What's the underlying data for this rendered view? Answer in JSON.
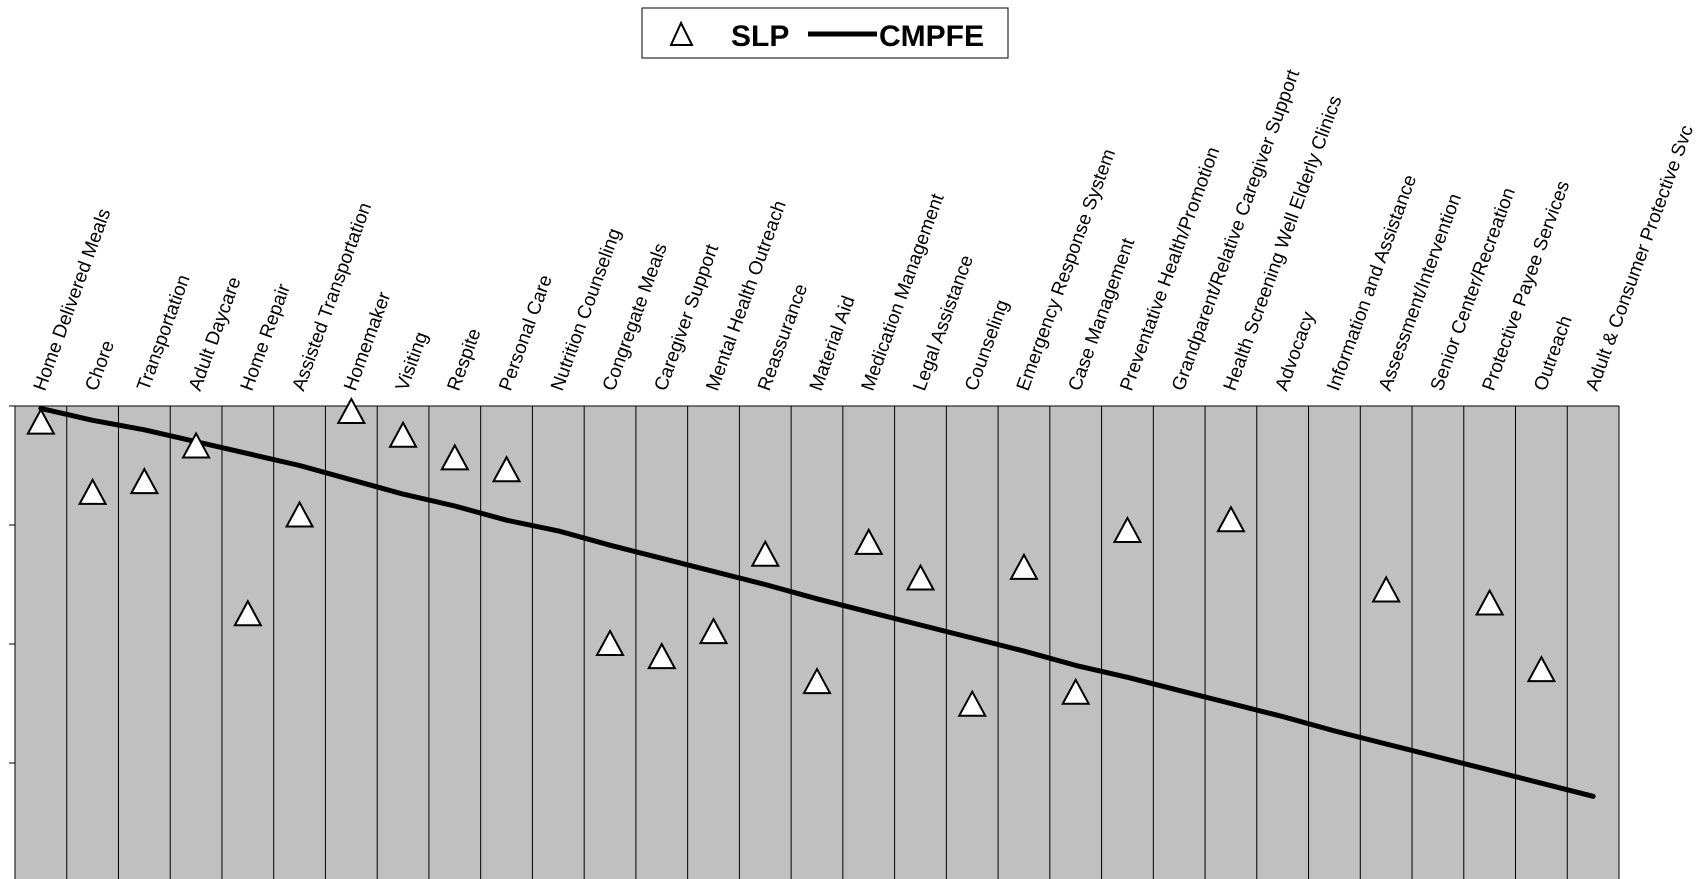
{
  "chart_data": {
    "type": "line",
    "title": "",
    "xlabel": "",
    "ylabel": "",
    "ylim": [
      0,
      4
    ],
    "grid": true,
    "legend_position": "top-center",
    "categories": [
      "Home Delivered Meals",
      "Chore",
      "Transportation",
      "Adult Daycare",
      "Home Repair",
      "Assisted Transportation",
      "Homemaker",
      "Visiting",
      "Respite",
      "Personal Care",
      "Nutrition Counseling",
      "Congregate Meals",
      "Caregiver Support",
      "Mental Health Outreach",
      "Reassurance",
      "Material Aid",
      "Medication Management",
      "Legal Assistance",
      "Counseling",
      "Emergency Response System",
      "Case Management",
      "Preventative Health/Promotion",
      "Grandparent/Relative Caregiver Support",
      "Health Screening Well Elderly Clinics",
      "Advocacy",
      "Information and Assistance",
      "Assessment/Intervention",
      "Senior Center/Recreation",
      "Protective Payee Services",
      "Outreach",
      "Adult & Consumer Protective Svc"
    ],
    "series": [
      {
        "name": "SLP",
        "marker": "triangle",
        "values": [
          3.86,
          3.27,
          3.36,
          3.66,
          2.25,
          3.08,
          3.95,
          3.75,
          3.56,
          3.46,
          null,
          2.0,
          1.89,
          2.1,
          2.75,
          1.68,
          2.85,
          2.55,
          1.49,
          2.64,
          1.59,
          2.95,
          null,
          3.04,
          null,
          null,
          2.45,
          null,
          2.34,
          1.78,
          null
        ]
      },
      {
        "name": "CMPFE",
        "marker": "line",
        "values": [
          3.98,
          3.88,
          3.8,
          3.7,
          3.6,
          3.5,
          3.38,
          3.26,
          3.16,
          3.04,
          2.95,
          2.83,
          2.72,
          2.61,
          2.5,
          2.38,
          2.27,
          2.16,
          2.05,
          1.94,
          1.82,
          1.72,
          1.61,
          1.5,
          1.39,
          1.27,
          1.16,
          1.05,
          0.94,
          0.83,
          0.72
        ]
      }
    ],
    "colors": {
      "plot_bg": "#c0c0c0",
      "gridline": "#000000",
      "line": "#000000",
      "marker_fill": "#ffffff",
      "marker_stroke": "#000000"
    }
  },
  "legend": {
    "slp_label": "SLP",
    "cmpfe_label": "CMPFE"
  }
}
